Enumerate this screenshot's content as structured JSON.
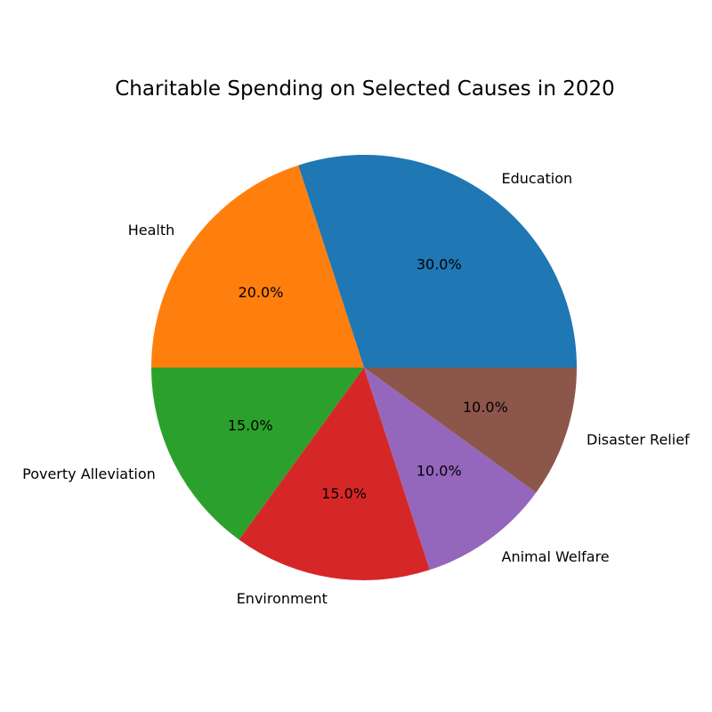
{
  "chart_data": {
    "type": "pie",
    "title": "Charitable Spending on Selected Causes in 2020",
    "categories": [
      "Education",
      "Health",
      "Poverty Alleviation",
      "Environment",
      "Animal Welfare",
      "Disaster Relief"
    ],
    "values": [
      30,
      20,
      15,
      15,
      10,
      10
    ],
    "percent_labels": [
      "30.0%",
      "20.0%",
      "15.0%",
      "15.0%",
      "10.0%",
      "10.0%"
    ],
    "colors": [
      "#1f77b4",
      "#ff7f0e",
      "#2ca02c",
      "#d62728",
      "#9467bd",
      "#8c564b"
    ],
    "start_angle_deg": 0,
    "direction": "counterclockwise",
    "legend": "none"
  }
}
